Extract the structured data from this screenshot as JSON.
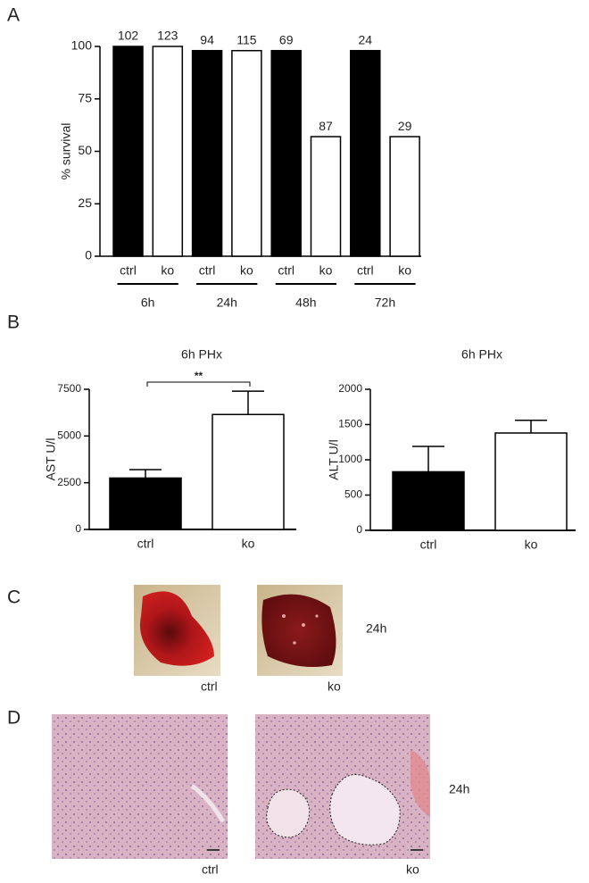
{
  "panels": [
    "A",
    "B",
    "C",
    "D"
  ],
  "chart_data": [
    {
      "type": "bar",
      "ylabel": "% survival",
      "categories": [
        "ctrl",
        "ko",
        "ctrl",
        "ko",
        "ctrl",
        "ko",
        "ctrl",
        "ko"
      ],
      "groups": [
        "6h",
        "24h",
        "48h",
        "72h"
      ],
      "values": [
        100,
        100,
        98,
        98,
        98,
        57,
        98,
        57
      ],
      "n_labels": [
        102,
        123,
        94,
        115,
        69,
        87,
        24,
        29
      ],
      "colors": [
        "#000000",
        "#ffffff",
        "#000000",
        "#ffffff",
        "#000000",
        "#ffffff",
        "#000000",
        "#ffffff"
      ],
      "ylim": [
        0,
        100
      ],
      "yticks": [
        0,
        25,
        50,
        75,
        100
      ]
    },
    {
      "type": "bar",
      "title": "6h PHx",
      "ylabel": "AST U/l",
      "categories": [
        "ctrl",
        "ko"
      ],
      "values": [
        2750,
        6150
      ],
      "errors": [
        450,
        1250
      ],
      "colors": [
        "#000000",
        "#ffffff"
      ],
      "significance": "**",
      "ylim": [
        0,
        7500
      ],
      "yticks": [
        0,
        2500,
        5000,
        7500
      ]
    },
    {
      "type": "bar",
      "title": "6h PHx",
      "ylabel": "ALT U/l",
      "categories": [
        "ctrl",
        "ko"
      ],
      "values": [
        830,
        1380
      ],
      "errors": [
        360,
        180
      ],
      "colors": [
        "#000000",
        "#ffffff"
      ],
      "ylim": [
        0,
        2000
      ],
      "yticks": [
        0,
        500,
        1000,
        1500,
        2000
      ]
    }
  ],
  "photos": {
    "C": {
      "labels": [
        "ctrl",
        "ko"
      ],
      "time": "24h"
    },
    "D": {
      "labels": [
        "ctrl",
        "ko"
      ],
      "time": "24h"
    }
  }
}
